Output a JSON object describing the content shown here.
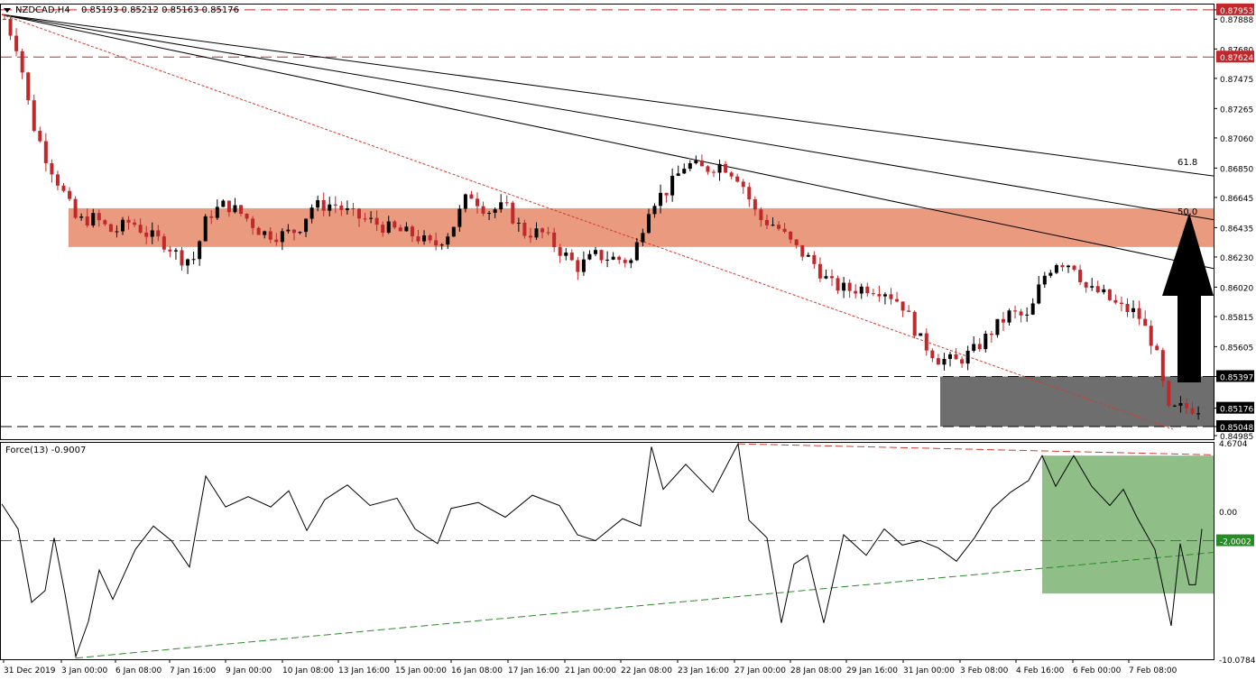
{
  "header": {
    "symbol_label": "NZDCAD,H4",
    "ohlc_label": "0.85193 0.85212 0.85163 0.85176"
  },
  "indicator": {
    "label": "Force(13) -0.9007",
    "ticks": [
      "4.6704",
      "0.00",
      "-10.0784"
    ],
    "level_label": "-2.0002"
  },
  "fib_labels": [
    "61.8",
    "50.0"
  ],
  "colors": {
    "bull": "#000000",
    "bear": "#c0282c",
    "resistance_zone": "#e99a7f",
    "support_zone": "#6e6e6e",
    "force_zone": "#8fbf87",
    "trend_red": "#d43a2f",
    "trend_green": "#2a8a2a",
    "arrow": "#000000"
  },
  "chart_data": {
    "type": "candlestick",
    "ylim": [
      0.8496,
      0.8799
    ],
    "yticks": [
      "0.87953",
      "0.87888",
      "0.87680",
      "0.87475",
      "0.87265",
      "0.87060",
      "0.86850",
      "0.86645",
      "0.86435",
      "0.86230",
      "0.86020",
      "0.85815",
      "0.85605",
      "0.85397",
      "0.85176",
      "0.85048",
      "0.84985"
    ],
    "xticks": [
      "31 Dec 2019",
      "3 Jan 00:00",
      "6 Jan 08:00",
      "7 Jan 16:00",
      "9 Jan 00:00",
      "10 Jan 08:00",
      "13 Jan 16:00",
      "15 Jan 00:00",
      "16 Jan 08:00",
      "17 Jan 16:00",
      "21 Jan 00:00",
      "22 Jan 08:00",
      "23 Jan 16:00",
      "27 Jan 00:00",
      "28 Jan 08:00",
      "29 Jan 16:00",
      "31 Jan 00:00",
      "3 Feb 08:00",
      "4 Feb 16:00",
      "6 Feb 00:00",
      "7 Feb 08:00"
    ],
    "horizontal_levels": [
      {
        "value": 0.87953,
        "label": "0.87953",
        "style": "red-dashed"
      },
      {
        "value": 0.87624,
        "label": "0.87624",
        "style": "red-dashed"
      },
      {
        "value": 0.85397,
        "label": "0.85397",
        "style": "black-dashed"
      },
      {
        "value": 0.85048,
        "label": "0.85048",
        "style": "black-dashed"
      }
    ],
    "current_price": {
      "value": 0.85176,
      "label": "0.85176"
    },
    "resistance_zone": [
      0.863,
      0.8657
    ],
    "support_zone": [
      0.85048,
      0.85397
    ],
    "force_index": {
      "ylim": [
        -10.0784,
        4.6704
      ],
      "level": -2.0002,
      "zone": [
        -5.6,
        3.8
      ]
    }
  }
}
